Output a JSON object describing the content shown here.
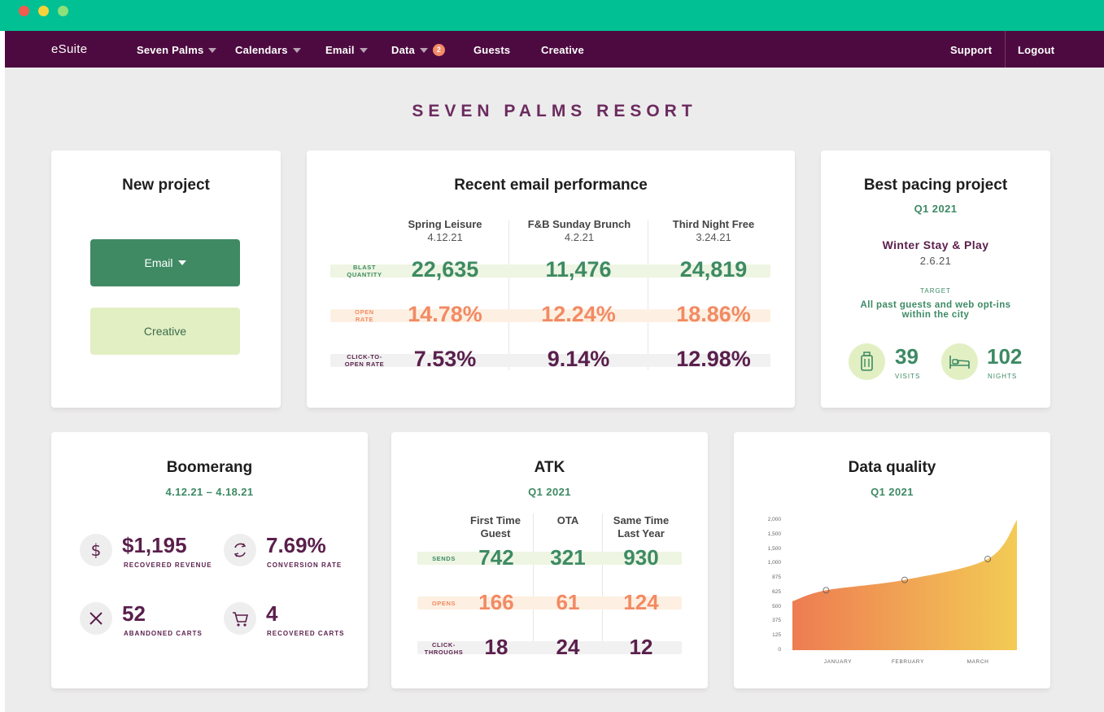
{
  "nav": {
    "brand": "eSuite",
    "items": [
      {
        "label": "Seven Palms",
        "caret": true
      },
      {
        "label": "Calendars",
        "caret": true
      },
      {
        "label": "Email",
        "caret": true
      },
      {
        "label": "Data",
        "caret": true,
        "badge": "2"
      },
      {
        "label": "Guests"
      },
      {
        "label": "Creative"
      }
    ],
    "right": [
      {
        "label": "Support"
      },
      {
        "label": "Logout"
      }
    ]
  },
  "page_title": "SEVEN PALMS RESORT",
  "new_project": {
    "title": "New project",
    "email_button": "Email",
    "creative_button": "Creative"
  },
  "email_performance": {
    "title": "Recent email performance",
    "columns": [
      {
        "name": "Spring Leisure",
        "date": "4.12.21"
      },
      {
        "name": "F&B Sunday Brunch",
        "date": "4.2.21"
      },
      {
        "name": "Third Night Free",
        "date": "3.24.21"
      }
    ],
    "rows": [
      {
        "label_1": "BLAST",
        "label_2": "QUANTITY",
        "values": [
          "22,635",
          "11,476",
          "24,819"
        ]
      },
      {
        "label_1": "OPEN",
        "label_2": "RATE",
        "values": [
          "14.78%",
          "12.24%",
          "18.86%"
        ]
      },
      {
        "label_1": "CLICK-TO-",
        "label_2": "OPEN RATE",
        "values": [
          "7.53%",
          "9.14%",
          "12.98%"
        ]
      }
    ]
  },
  "best_pacing": {
    "title": "Best pacing project",
    "period": "Q1 2021",
    "project": "Winter Stay & Play",
    "date": "2.6.21",
    "target_label": "TARGET",
    "target_line_1": "All past guests and web opt-ins",
    "target_line_2": "within the city",
    "visits_value": "39",
    "visits_label": "VISITS",
    "nights_value": "102",
    "nights_label": "NIGHTS",
    "icons": [
      "luggage-icon",
      "bed-icon"
    ]
  },
  "boomerang": {
    "title": "Boomerang",
    "period": "4.12.21 – 4.18.21",
    "stats": [
      {
        "value": "$1,195",
        "label": "RECOVERED REVENUE",
        "icon": "dollar-icon"
      },
      {
        "value": "7.69%",
        "label": "CONVERSION RATE",
        "icon": "refresh-icon"
      },
      {
        "value": "52",
        "label": "ABANDONED CARTS",
        "icon": "x-icon"
      },
      {
        "value": "4",
        "label": "RECOVERED CARTS",
        "icon": "cart-icon"
      }
    ]
  },
  "atk": {
    "title": "ATK",
    "period": "Q1 2021",
    "columns": [
      {
        "line_1": "First Time",
        "line_2": "Guest"
      },
      {
        "line_1": "OTA",
        "line_2": ""
      },
      {
        "line_1": "Same Time",
        "line_2": "Last Year"
      }
    ],
    "rows": [
      {
        "label_1": "SENDS",
        "label_2": "",
        "values": [
          "742",
          "321",
          "930"
        ]
      },
      {
        "label_1": "OPENS",
        "label_2": "",
        "values": [
          "166",
          "61",
          "124"
        ]
      },
      {
        "label_1": "CLICK-",
        "label_2": "THROUGHS",
        "values": [
          "18",
          "24",
          "12"
        ]
      }
    ]
  },
  "data_quality": {
    "title": "Data quality",
    "period": "Q1 2021",
    "chart_data": {
      "type": "area",
      "categories": [
        "JANUARY",
        "FEBRUARY",
        "MARCH"
      ],
      "y_ticks": [
        "2,000",
        "1,500",
        "1,500",
        "1,000",
        "875",
        "625",
        "500",
        "375",
        "125",
        "0"
      ],
      "x": [
        0,
        0.15,
        0.5,
        0.87,
        1
      ],
      "values": [
        750,
        920,
        1080,
        1400,
        2000
      ],
      "markers": [
        920,
        1080,
        1400
      ],
      "ylim": [
        0,
        2000
      ],
      "gradient": [
        "#ee7c52",
        "#f3cb55"
      ]
    }
  },
  "colors": {
    "chrome": "#00c094",
    "nav": "#4d0a40",
    "green": "#3d8a64",
    "orange": "#f28a63",
    "purple": "#5a1f4c"
  }
}
